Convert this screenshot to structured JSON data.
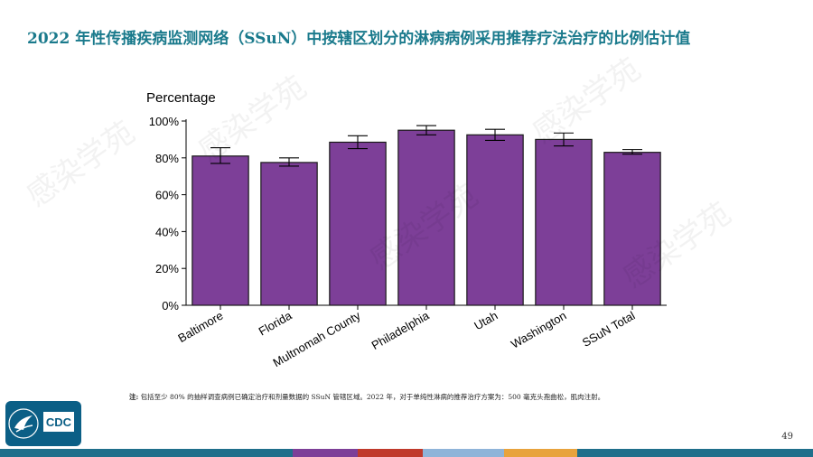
{
  "title": "2022 年性传播疾病监测网络（SSuN）中按辖区划分的淋病病例采用推荐疗法治疗的比例估计值",
  "footnote": {
    "label": "注:",
    "text": "包括至少 80% 的抽样调查病例已确定治疗和剂量数据的 SSuN 管辖区域。2022 年，对于单纯性淋病的推荐治疗方案为：500 毫克头孢曲松，肌肉注射。"
  },
  "page_number": "49",
  "logo": {
    "text": "CDC",
    "icon": "hhs-eagle-icon"
  },
  "watermark": "感染学苑",
  "colors": {
    "title": "#1a7a8c",
    "bar": "#7d3f98",
    "bar_outline": "#1a1a1a",
    "logo_bg": "#0b5f86",
    "footer_stripes": [
      "#1f6f8b",
      "#1f6f8b",
      "#1f6f8b",
      "#7d3f98",
      "#c0392b",
      "#8fb4d9",
      "#e8a33d",
      "#1f6f8b"
    ]
  },
  "chart_data": {
    "type": "bar",
    "ylabel": "Percentage",
    "xlabel": "",
    "categories": [
      "Baltimore",
      "Florida",
      "Multnomah County",
      "Philadelphia",
      "Utah",
      "Washington",
      "SSuN Total"
    ],
    "values": [
      81,
      77.5,
      88.5,
      95,
      92.5,
      90,
      83
    ],
    "error_low": [
      77,
      75.5,
      85,
      92.5,
      89.5,
      86.5,
      82
    ],
    "error_high": [
      85.5,
      80,
      92,
      97.5,
      95.5,
      93.5,
      84.5
    ],
    "ylim": [
      0,
      100
    ],
    "yticks": [
      0,
      20,
      40,
      60,
      80,
      100
    ],
    "ytick_labels": [
      "0%",
      "20%",
      "40%",
      "60%",
      "80%",
      "100%"
    ]
  }
}
